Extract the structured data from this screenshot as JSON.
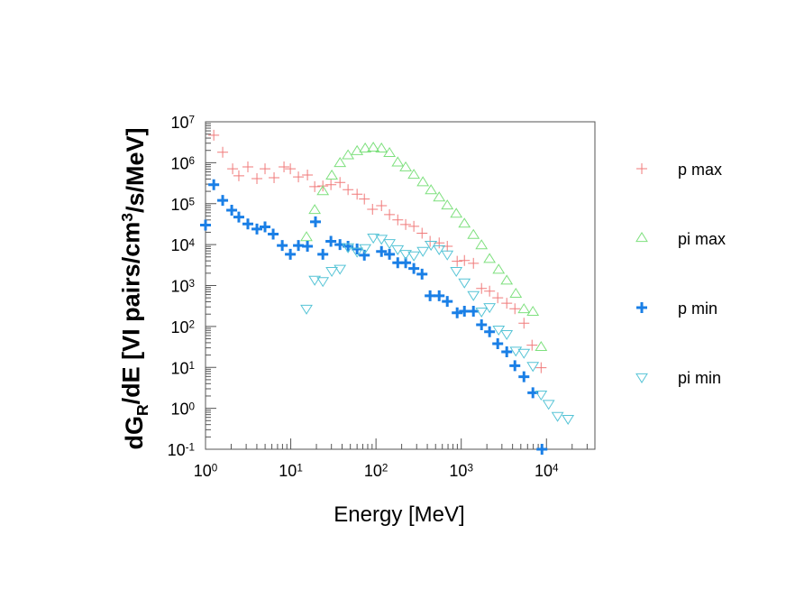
{
  "chart_data": {
    "type": "scatter",
    "x_label": "Energy [MeV]",
    "y_label": "dG_R/dE [VI pairs/cm^3/s/MeV]",
    "xscale": "log",
    "yscale": "log",
    "xlim": [
      1,
      37000
    ],
    "ylim": [
      0.1,
      10000000
    ],
    "xticks": [
      {
        "value": 1,
        "label": "10^0"
      },
      {
        "value": 10,
        "label": "10^1"
      },
      {
        "value": 100,
        "label": "10^2"
      },
      {
        "value": 1000,
        "label": "10^3"
      },
      {
        "value": 10000,
        "label": "10^4"
      }
    ],
    "yticks": [
      {
        "value": 0.1,
        "label": "10^-1"
      },
      {
        "value": 1,
        "label": "10^0"
      },
      {
        "value": 10,
        "label": "10^1"
      },
      {
        "value": 100,
        "label": "10^2"
      },
      {
        "value": 1000,
        "label": "10^3"
      },
      {
        "value": 10000,
        "label": "10^4"
      },
      {
        "value": 100000,
        "label": "10^5"
      },
      {
        "value": 1000000,
        "label": "10^6"
      },
      {
        "value": 10000000,
        "label": "10^7"
      }
    ],
    "legend": "right",
    "series": [
      {
        "name": "p max",
        "color": "#f07a7a",
        "marker": "plus",
        "x": [
          1.25,
          1.59,
          2.08,
          2.46,
          3.14,
          4.01,
          4.99,
          6.37,
          8.33,
          9.89,
          12.3,
          15.7,
          19.1,
          23.8,
          29.6,
          37.8,
          47,
          60,
          73,
          91,
          116,
          144,
          180,
          223,
          278,
          347,
          431,
          551,
          686,
          896,
          1090,
          1390,
          1730,
          2150,
          2680,
          3420,
          4260,
          5440,
          6770,
          8650
        ],
        "values": [
          4700000,
          1800000,
          710000,
          480000,
          790000,
          410000,
          710000,
          430000,
          790000,
          710000,
          450000,
          500000,
          260000,
          270000,
          290000,
          330000,
          220000,
          170000,
          130000,
          73000,
          89000,
          54000,
          40000,
          31000,
          28000,
          19000,
          12000,
          11000,
          9100,
          3900,
          4100,
          3500,
          850,
          730,
          500,
          370,
          270,
          120,
          35,
          9.8
        ]
      },
      {
        "name": "pi max",
        "color": "#7ee07e",
        "marker": "triangle-up",
        "x": [
          15.3,
          19.1,
          23.8,
          30.3,
          37.8,
          47,
          60,
          74.7,
          93,
          116,
          144,
          180,
          223,
          278,
          355,
          442,
          551,
          686,
          875,
          1090,
          1390,
          1730,
          2150,
          2750,
          3420,
          4370,
          5440,
          6930,
          8650
        ],
        "values": [
          15000,
          69000,
          200000,
          480000,
          970000,
          1500000,
          1900000,
          2200000,
          2300000,
          2200000,
          1700000,
          1000000,
          760000,
          500000,
          330000,
          210000,
          140000,
          89000,
          56000,
          32000,
          17000,
          9500,
          4400,
          2400,
          1300,
          620,
          260,
          225,
          31
        ]
      },
      {
        "name": "p min",
        "color": "#1a7fe6",
        "marker": "plus-bold",
        "x": [
          1.0,
          1.25,
          1.59,
          2.03,
          2.46,
          3.14,
          4.01,
          4.99,
          6.22,
          7.95,
          9.89,
          12.3,
          15.7,
          19.5,
          23.8,
          29.6,
          37.8,
          47,
          60,
          73,
          116,
          144,
          180,
          223,
          278,
          347,
          431,
          551,
          686,
          896,
          1090,
          1390,
          1730,
          2150,
          2680,
          3420,
          4260,
          5440,
          6930,
          8850
        ],
        "values": [
          30000,
          290000,
          120000,
          69000,
          47000,
          32000,
          24000,
          27000,
          18000,
          9500,
          5800,
          9500,
          9100,
          36000,
          5800,
          12000,
          10000,
          9100,
          7800,
          5500,
          6800,
          5800,
          3600,
          3600,
          2600,
          1900,
          560,
          560,
          410,
          215,
          235,
          235,
          110,
          74,
          38,
          24,
          11,
          5.9,
          2.4,
          0.1
        ]
      },
      {
        "name": "pi min",
        "color": "#56c4d6",
        "marker": "triangle-down",
        "x": [
          15.3,
          19.1,
          23.8,
          30.3,
          37.8,
          47,
          60,
          74.7,
          93,
          116,
          144,
          180,
          223,
          278,
          355,
          442,
          551,
          686,
          875,
          1090,
          1390,
          1730,
          2150,
          2750,
          3420,
          4370,
          5440,
          6930,
          8650,
          10600,
          13500,
          17900
        ],
        "values": [
          275,
          1400,
          1300,
          2300,
          2600,
          8700,
          6800,
          8300,
          15000,
          14000,
          11000,
          7800,
          6000,
          5500,
          7100,
          10000,
          7800,
          5800,
          2300,
          1200,
          590,
          235,
          300,
          85,
          66,
          26,
          23,
          11,
          2.2,
          1.3,
          0.66,
          0.56
        ]
      }
    ]
  }
}
